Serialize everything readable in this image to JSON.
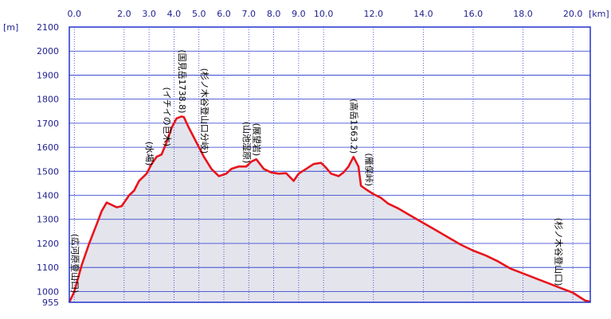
{
  "chart_data": {
    "type": "area",
    "title": "",
    "x_unit": "[km]",
    "y_unit": "[m]",
    "xlim": [
      -0.2,
      20.7
    ],
    "ylim": [
      955,
      2100
    ],
    "x_ticks": [
      0,
      2,
      3,
      4,
      5,
      6,
      7,
      8,
      9,
      10,
      12,
      14,
      16,
      18,
      20
    ],
    "x_tick_labels": [
      "0.0",
      "2.0",
      "3.0",
      "4.0",
      "5.0",
      "6.0",
      "7.0",
      "8.0",
      "9.0",
      "10.0",
      "12.0",
      "14.0",
      "16.0",
      "18.0",
      "20.0"
    ],
    "y_ticks": [
      955,
      1000,
      1100,
      1200,
      1300,
      1400,
      1500,
      1600,
      1700,
      1800,
      1900,
      2000,
      2100
    ],
    "y_tick_labels": [
      "955",
      "1000",
      "1100",
      "1200",
      "1300",
      "1400",
      "1500",
      "1600",
      "1700",
      "1800",
      "1900",
      "2000",
      "2100"
    ],
    "grid": true,
    "colors": {
      "line": "#e8141c",
      "area": "#e4e4ec",
      "grid": "#2233cc",
      "frame": "#2233cc"
    },
    "series": [
      {
        "x": [
          -0.2,
          0.0,
          0.3,
          0.6,
          0.9,
          1.1,
          1.3,
          1.5,
          1.7,
          1.9,
          2.0,
          2.2,
          2.4,
          2.6,
          2.9,
          3.1,
          3.3,
          3.5,
          3.7,
          3.9,
          4.1,
          4.3,
          4.4,
          4.6,
          4.9,
          5.2,
          5.5,
          5.8,
          6.1,
          6.3,
          6.6,
          6.9,
          7.1,
          7.3,
          7.6,
          7.9,
          8.2,
          8.5,
          8.8,
          9.0,
          9.3,
          9.6,
          9.9,
          10.1,
          10.3,
          10.6,
          10.8,
          11.0,
          11.2,
          11.4,
          11.5,
          11.7,
          12.0,
          12.3,
          12.6,
          13.0,
          13.5,
          14.0,
          14.5,
          15.0,
          15.5,
          16.0,
          16.5,
          17.0,
          17.5,
          18.0,
          18.5,
          19.0,
          19.5,
          20.0,
          20.3,
          20.5,
          20.7
        ],
        "y": [
          955,
          1000,
          1110,
          1200,
          1280,
          1335,
          1370,
          1360,
          1350,
          1355,
          1370,
          1400,
          1420,
          1460,
          1490,
          1530,
          1560,
          1570,
          1620,
          1680,
          1720,
          1728,
          1725,
          1680,
          1620,
          1560,
          1510,
          1480,
          1490,
          1510,
          1520,
          1520,
          1540,
          1550,
          1510,
          1495,
          1490,
          1492,
          1460,
          1490,
          1510,
          1530,
          1535,
          1515,
          1490,
          1480,
          1495,
          1520,
          1560,
          1520,
          1440,
          1425,
          1405,
          1390,
          1365,
          1345,
          1315,
          1285,
          1255,
          1225,
          1195,
          1170,
          1150,
          1125,
          1095,
          1075,
          1055,
          1035,
          1015,
          995,
          975,
          962,
          958
        ]
      }
    ],
    "annotations": [
      {
        "text": "(広河原登山口)",
        "x": 0.0,
        "elev": 980
      },
      {
        "text": "(水場)",
        "x": 3.0,
        "elev": 1510
      },
      {
        "text": "(イチイの巨木)",
        "x": 3.7,
        "elev": 1590
      },
      {
        "text": "(国見岳1738.8)",
        "x": 4.3,
        "elev": 1728
      },
      {
        "text": "(杉ノ木谷登山口分岐)",
        "x": 5.2,
        "elev": 1560
      },
      {
        "text": "(山池湿原)",
        "x": 6.9,
        "elev": 1520
      },
      {
        "text": "(展望岩)",
        "x": 7.3,
        "elev": 1550
      },
      {
        "text": "(高岳1563.2)",
        "x": 11.2,
        "elev": 1560
      },
      {
        "text": "(雁俣峠)",
        "x": 11.8,
        "elev": 1425
      },
      {
        "text": "(杉ノ木谷登山口)",
        "x": 19.4,
        "elev": 1010
      }
    ]
  }
}
